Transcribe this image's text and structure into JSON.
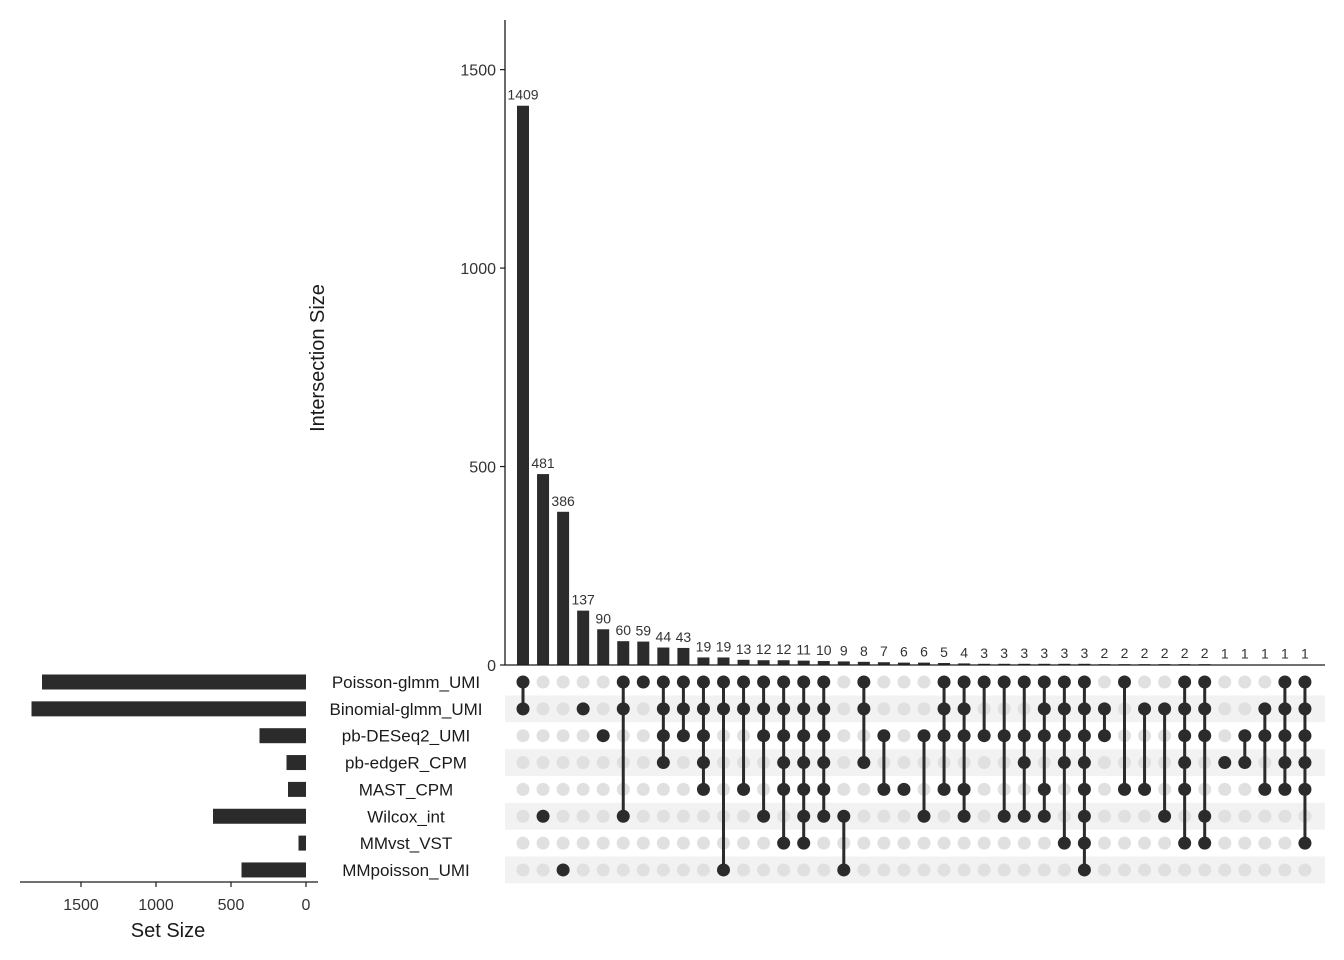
{
  "chart_data": {
    "type": "upset",
    "ylabel": "Intersection Size",
    "xlabel_sets": "Set Size",
    "ylim": [
      0,
      1625
    ],
    "yticks": [
      0,
      500,
      1000,
      1500
    ],
    "set_size_xlim": [
      0,
      1900
    ],
    "set_size_ticks": [
      1500,
      1000,
      500,
      0
    ],
    "sets": [
      {
        "name": "Poisson-glmm_UMI",
        "size": 1760
      },
      {
        "name": "Binomial-glmm_UMI",
        "size": 1830
      },
      {
        "name": "pb-DESeq2_UMI",
        "size": 310
      },
      {
        "name": "pb-edgeR_CPM",
        "size": 130
      },
      {
        "name": "MAST_CPM",
        "size": 120
      },
      {
        "name": "Wilcox_int",
        "size": 620
      },
      {
        "name": "MMvst_VST",
        "size": 50
      },
      {
        "name": "MMpoisson_UMI",
        "size": 430
      }
    ],
    "intersections": [
      {
        "value": 1409,
        "label": "1409",
        "sets": [
          0,
          1
        ]
      },
      {
        "value": 481,
        "label": "481",
        "sets": [
          5
        ]
      },
      {
        "value": 386,
        "label": "386",
        "sets": [
          7
        ]
      },
      {
        "value": 137,
        "label": "137",
        "sets": [
          1
        ]
      },
      {
        "value": 90,
        "label": "90",
        "sets": [
          2
        ]
      },
      {
        "value": 60,
        "label": "60",
        "sets": [
          0,
          1,
          5
        ]
      },
      {
        "value": 59,
        "label": "59",
        "sets": [
          0
        ]
      },
      {
        "value": 44,
        "label": "44",
        "sets": [
          0,
          1,
          2,
          3
        ]
      },
      {
        "value": 43,
        "label": "43",
        "sets": [
          0,
          1,
          2
        ]
      },
      {
        "value": 19,
        "label": "19",
        "sets": [
          0,
          1,
          2,
          3,
          4
        ]
      },
      {
        "value": 19,
        "label": "19",
        "sets": [
          0,
          1,
          7
        ]
      },
      {
        "value": 13,
        "label": "13",
        "sets": [
          0,
          1,
          4
        ]
      },
      {
        "value": 12,
        "label": "12",
        "sets": [
          0,
          1,
          2,
          5
        ]
      },
      {
        "value": 12,
        "label": "12",
        "sets": [
          0,
          1,
          2,
          3,
          4,
          6
        ]
      },
      {
        "value": 11,
        "label": "11",
        "sets": [
          0,
          1,
          2,
          3,
          4,
          5,
          6
        ]
      },
      {
        "value": 10,
        "label": "10",
        "sets": [
          0,
          1,
          2,
          3,
          4,
          5
        ]
      },
      {
        "value": 9,
        "label": "9",
        "sets": [
          5,
          7
        ]
      },
      {
        "value": 8,
        "label": "8",
        "sets": [
          0,
          1,
          3
        ]
      },
      {
        "value": 7,
        "label": "7",
        "sets": [
          2,
          4
        ]
      },
      {
        "value": 6,
        "label": "6",
        "sets": [
          4
        ]
      },
      {
        "value": 6,
        "label": "6",
        "sets": [
          2,
          5
        ]
      },
      {
        "value": 5,
        "label": "5",
        "sets": [
          0,
          1,
          2,
          4
        ]
      },
      {
        "value": 4,
        "label": "4",
        "sets": [
          0,
          1,
          2,
          4,
          5
        ]
      },
      {
        "value": 3,
        "label": "3",
        "sets": [
          0,
          2
        ]
      },
      {
        "value": 3,
        "label": "3",
        "sets": [
          0,
          2,
          5
        ]
      },
      {
        "value": 3,
        "label": "3",
        "sets": [
          0,
          2,
          3,
          5
        ]
      },
      {
        "value": 3,
        "label": "3",
        "sets": [
          0,
          1,
          2,
          4,
          5
        ]
      },
      {
        "value": 3,
        "label": "3",
        "sets": [
          0,
          1,
          2,
          3,
          6
        ]
      },
      {
        "value": 3,
        "label": "3",
        "sets": [
          0,
          1,
          2,
          3,
          4,
          5,
          6,
          7
        ]
      },
      {
        "value": 2,
        "label": "2",
        "sets": [
          1,
          2
        ]
      },
      {
        "value": 2,
        "label": "2",
        "sets": [
          0,
          4
        ]
      },
      {
        "value": 2,
        "label": "2",
        "sets": [
          1,
          4
        ]
      },
      {
        "value": 2,
        "label": "2",
        "sets": [
          1,
          5
        ]
      },
      {
        "value": 2,
        "label": "2",
        "sets": [
          0,
          1,
          2,
          3,
          4,
          6
        ]
      },
      {
        "value": 2,
        "label": "2",
        "sets": [
          0,
          1,
          2,
          5,
          6
        ]
      },
      {
        "value": 1,
        "label": "1",
        "sets": [
          3
        ]
      },
      {
        "value": 1,
        "label": "1",
        "sets": [
          2,
          3
        ]
      },
      {
        "value": 1,
        "label": "1",
        "sets": [
          1,
          2,
          4
        ]
      },
      {
        "value": 1,
        "label": "1",
        "sets": [
          0,
          1,
          2,
          3,
          4
        ]
      },
      {
        "value": 1,
        "label": "1",
        "sets": [
          0,
          1,
          2,
          3,
          4,
          6
        ]
      }
    ],
    "colors": {
      "bar": "#2b2b2b",
      "dot_active": "#2b2b2b",
      "dot_inactive": "#e0e0e0",
      "stripe": "#f2f2f2",
      "axis": "#1a1a1a"
    }
  }
}
